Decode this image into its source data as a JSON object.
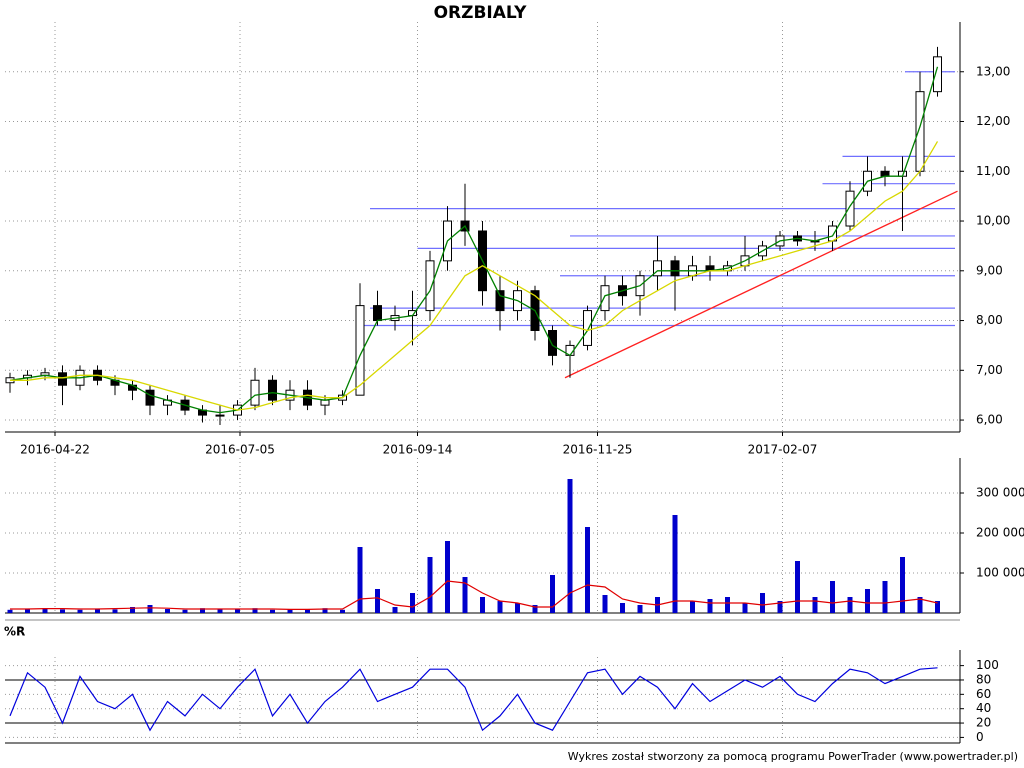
{
  "chart_data": [
    {
      "type": "candlestick",
      "title": "ORZBIALY",
      "x": [
        "2016-04-04",
        "2016-04-11",
        "2016-04-18",
        "2016-04-25",
        "2016-05-02",
        "2016-05-09",
        "2016-05-16",
        "2016-05-23",
        "2016-05-30",
        "2016-06-06",
        "2016-06-13",
        "2016-06-20",
        "2016-06-27",
        "2016-07-04",
        "2016-07-11",
        "2016-07-18",
        "2016-07-25",
        "2016-08-01",
        "2016-08-08",
        "2016-08-15",
        "2016-08-22",
        "2016-08-29",
        "2016-09-05",
        "2016-09-12",
        "2016-09-19",
        "2016-09-26",
        "2016-10-03",
        "2016-10-10",
        "2016-10-17",
        "2016-10-24",
        "2016-10-31",
        "2016-11-07",
        "2016-11-14",
        "2016-11-21",
        "2016-11-28",
        "2016-12-05",
        "2016-12-12",
        "2016-12-19",
        "2016-12-26",
        "2017-01-02",
        "2017-01-09",
        "2017-01-16",
        "2017-01-23",
        "2017-01-30",
        "2017-02-06",
        "2017-02-13",
        "2017-02-20",
        "2017-02-27",
        "2017-03-06",
        "2017-03-13",
        "2017-03-20",
        "2017-03-27",
        "2017-04-03",
        "2017-04-10"
      ],
      "open": [
        6.75,
        6.85,
        6.9,
        6.95,
        6.7,
        7.0,
        6.8,
        6.7,
        6.6,
        6.3,
        6.4,
        6.2,
        6.1,
        6.1,
        6.3,
        6.8,
        6.4,
        6.6,
        6.3,
        6.4,
        6.5,
        8.3,
        8.0,
        8.1,
        8.2,
        9.2,
        10.0,
        9.8,
        8.6,
        8.2,
        8.6,
        7.8,
        7.3,
        7.5,
        8.2,
        8.7,
        8.5,
        8.9,
        9.2,
        8.9,
        9.1,
        9.0,
        9.1,
        9.3,
        9.5,
        9.7,
        9.6,
        9.6,
        9.9,
        10.6,
        11.0,
        10.9,
        11.0,
        12.6
      ],
      "high": [
        6.95,
        7.0,
        7.05,
        7.1,
        7.1,
        7.1,
        6.9,
        6.8,
        6.7,
        6.5,
        6.5,
        6.3,
        6.3,
        6.4,
        7.05,
        6.9,
        6.8,
        6.8,
        6.5,
        6.6,
        8.75,
        8.6,
        8.3,
        8.6,
        9.4,
        10.3,
        10.75,
        10.0,
        8.9,
        8.8,
        8.7,
        7.9,
        7.6,
        8.3,
        8.9,
        8.9,
        9.0,
        9.7,
        9.3,
        9.3,
        9.3,
        9.2,
        9.7,
        9.6,
        9.8,
        9.8,
        9.8,
        10.0,
        10.8,
        11.3,
        11.1,
        11.3,
        13.0,
        13.5
      ],
      "low": [
        6.55,
        6.7,
        6.8,
        6.3,
        6.6,
        6.7,
        6.5,
        6.4,
        6.1,
        6.1,
        6.1,
        5.95,
        5.9,
        6.0,
        6.2,
        6.3,
        6.2,
        6.2,
        6.1,
        6.3,
        6.5,
        7.9,
        7.8,
        7.5,
        8.0,
        9.0,
        9.5,
        8.3,
        7.8,
        8.0,
        7.6,
        7.1,
        6.85,
        7.4,
        8.0,
        8.3,
        8.1,
        8.6,
        8.2,
        8.8,
        8.8,
        8.9,
        9.0,
        9.2,
        9.4,
        9.5,
        9.4,
        9.4,
        9.8,
        10.5,
        10.7,
        9.8,
        10.9,
        12.5
      ],
      "close": [
        6.85,
        6.9,
        6.95,
        6.7,
        7.0,
        6.8,
        6.7,
        6.6,
        6.3,
        6.4,
        6.2,
        6.1,
        6.1,
        6.3,
        6.8,
        6.4,
        6.6,
        6.3,
        6.4,
        6.5,
        8.3,
        8.0,
        8.1,
        8.2,
        9.2,
        10.0,
        9.8,
        8.6,
        8.2,
        8.6,
        7.8,
        7.3,
        7.5,
        8.2,
        8.7,
        8.5,
        8.9,
        9.2,
        8.9,
        9.1,
        9.0,
        9.1,
        9.3,
        9.5,
        9.7,
        9.6,
        9.6,
        9.9,
        10.6,
        11.0,
        10.9,
        11.0,
        12.6,
        13.3
      ],
      "lines": [
        {
          "color": "#008000",
          "values": [
            6.8,
            6.85,
            6.9,
            6.85,
            6.85,
            6.9,
            6.8,
            6.7,
            6.5,
            6.4,
            6.3,
            6.2,
            6.15,
            6.2,
            6.5,
            6.55,
            6.5,
            6.45,
            6.4,
            6.45,
            7.3,
            8.0,
            8.05,
            8.1,
            8.6,
            9.6,
            9.9,
            9.2,
            8.5,
            8.4,
            8.2,
            7.5,
            7.3,
            7.8,
            8.5,
            8.6,
            8.7,
            9.0,
            9.0,
            9.0,
            9.0,
            9.05,
            9.2,
            9.4,
            9.6,
            9.65,
            9.6,
            9.7,
            10.3,
            10.8,
            10.9,
            10.9,
            11.9,
            13.1
          ]
        },
        {
          "color": "#d8d800",
          "values": [
            6.8,
            6.8,
            6.85,
            6.85,
            6.9,
            6.9,
            6.85,
            6.8,
            6.7,
            6.6,
            6.5,
            6.4,
            6.3,
            6.2,
            6.25,
            6.35,
            6.45,
            6.5,
            6.45,
            6.45,
            6.7,
            7.0,
            7.3,
            7.6,
            7.9,
            8.4,
            8.9,
            9.1,
            8.9,
            8.7,
            8.5,
            8.2,
            7.9,
            7.8,
            7.9,
            8.2,
            8.4,
            8.6,
            8.8,
            8.9,
            9.0,
            9.0,
            9.1,
            9.2,
            9.3,
            9.4,
            9.5,
            9.6,
            9.8,
            10.1,
            10.4,
            10.6,
            11.0,
            11.6
          ]
        }
      ],
      "hlines_color": "#7070ff",
      "hlines": [
        {
          "y": 13.0,
          "from": "2017-03-28"
        },
        {
          "y": 11.3,
          "from": "2017-03-03"
        },
        {
          "y": 10.75,
          "from": "2017-02-23"
        },
        {
          "y": 10.25,
          "from": "2016-08-26"
        },
        {
          "y": 9.7,
          "from": "2016-11-14"
        },
        {
          "y": 9.45,
          "from": "2016-09-14"
        },
        {
          "y": 8.9,
          "from": "2016-11-10"
        },
        {
          "y": 8.25,
          "from": "2016-08-26"
        },
        {
          "y": 7.9,
          "from": "2016-08-22"
        }
      ],
      "trendline": {
        "color": "#ff2020",
        "x": [
          "2016-11-12",
          "2017-04-18"
        ],
        "y": [
          6.85,
          10.6
        ]
      },
      "xlim": [
        "2016-04-02",
        "2017-04-19"
      ],
      "xticks": [
        "2016-04-22",
        "2016-07-05",
        "2016-09-14",
        "2016-11-25",
        "2017-02-07"
      ],
      "ylim": [
        5.76,
        14.0
      ],
      "yticks": [
        {
          "value": 6,
          "label": "6,00"
        },
        {
          "value": 7,
          "label": "7,00"
        },
        {
          "value": 8,
          "label": "8,00"
        },
        {
          "value": 9,
          "label": "9,00"
        },
        {
          "value": 10,
          "label": "10,00"
        },
        {
          "value": 11,
          "label": "11,00"
        },
        {
          "value": 12,
          "label": "12,00"
        },
        {
          "value": 13,
          "label": "13,00"
        }
      ],
      "grid": true
    },
    {
      "type": "bar",
      "color": "#0000cc",
      "values": [
        8000,
        10000,
        12000,
        9000,
        8000,
        10000,
        9000,
        15000,
        20000,
        10000,
        8000,
        12000,
        9000,
        10000,
        12000,
        8000,
        9000,
        10000,
        12000,
        8000,
        165000,
        60000,
        15000,
        50000,
        140000,
        180000,
        90000,
        40000,
        30000,
        25000,
        20000,
        95000,
        335000,
        215000,
        45000,
        25000,
        20000,
        40000,
        245000,
        30000,
        35000,
        40000,
        25000,
        50000,
        30000,
        130000,
        40000,
        80000,
        40000,
        60000,
        80000,
        140000,
        40000,
        30000
      ],
      "line": {
        "color": "#e00000",
        "values": [
          10000,
          10000,
          11000,
          11000,
          10000,
          10000,
          11000,
          12000,
          13000,
          12000,
          10000,
          10000,
          10000,
          10000,
          10000,
          10000,
          9000,
          9000,
          10000,
          10000,
          35000,
          38000,
          20000,
          15000,
          40000,
          80000,
          75000,
          50000,
          30000,
          25000,
          15000,
          15000,
          50000,
          70000,
          65000,
          35000,
          25000,
          20000,
          30000,
          30000,
          25000,
          25000,
          25000,
          20000,
          25000,
          30000,
          30000,
          25000,
          30000,
          25000,
          25000,
          30000,
          35000,
          25000
        ]
      },
      "ylim": [
        0,
        387500
      ],
      "yticks": [
        {
          "value": 100000,
          "label": "100 000"
        },
        {
          "value": 200000,
          "label": "200 000"
        },
        {
          "value": 300000,
          "label": "300 000"
        }
      ],
      "grid": true
    },
    {
      "type": "line",
      "title": "%R",
      "color": "#0000dd",
      "values": [
        30,
        90,
        70,
        20,
        85,
        50,
        40,
        60,
        10,
        50,
        30,
        60,
        40,
        70,
        95,
        30,
        60,
        20,
        50,
        70,
        95,
        50,
        60,
        70,
        95,
        95,
        70,
        10,
        30,
        60,
        20,
        10,
        50,
        90,
        95,
        60,
        85,
        70,
        40,
        75,
        50,
        65,
        80,
        70,
        85,
        60,
        50,
        75,
        95,
        90,
        75,
        85,
        95,
        97
      ],
      "levels": [
        20,
        80
      ],
      "ylim": [
        -5,
        112
      ],
      "yticks": [
        0,
        20,
        40,
        60,
        80,
        100
      ],
      "grid": true
    }
  ],
  "footer": "Wykres został stworzony za pomocą programu PowerTrader (www.powertrader.pl)"
}
